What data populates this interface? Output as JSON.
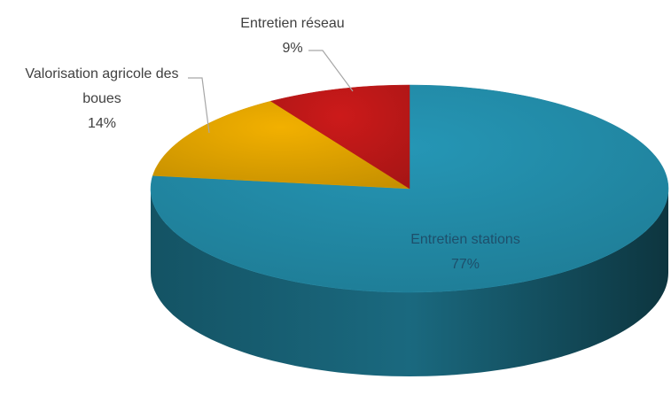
{
  "chart_data": {
    "type": "pie",
    "categories": [
      "Entretien stations",
      "Valorisation agricole des boues",
      "Entretien réseau"
    ],
    "values": [
      77,
      14,
      9
    ],
    "value_labels": [
      "77%",
      "14%",
      "9%"
    ],
    "colors": [
      "#2596b5",
      "#f2b000",
      "#cc1a1a"
    ]
  }
}
